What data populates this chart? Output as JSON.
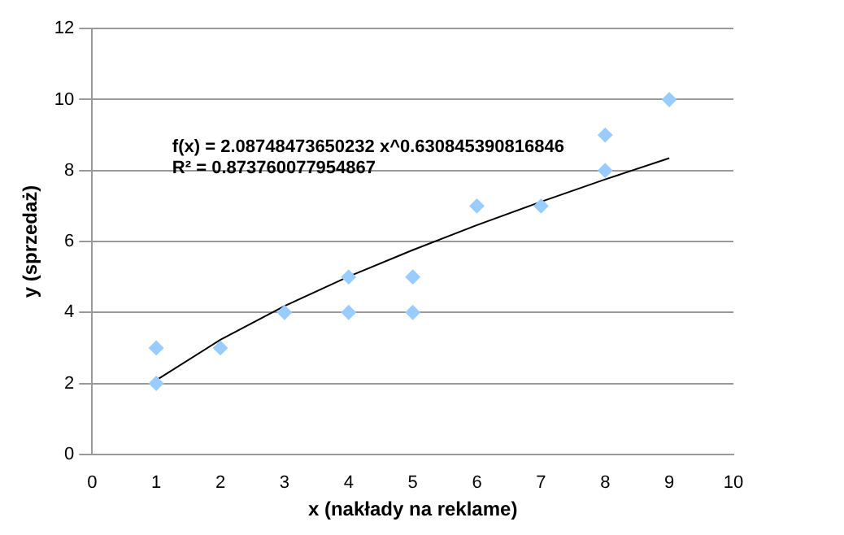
{
  "chart_data": {
    "type": "scatter",
    "xlabel": "x (nakłady na reklame)",
    "ylabel": "y (sprzedaż)",
    "xlim": [
      0,
      10
    ],
    "xticks": [
      0,
      1,
      2,
      3,
      4,
      5,
      6,
      7,
      8,
      9,
      10
    ],
    "ylim": [
      0,
      12
    ],
    "yticks": [
      0,
      2,
      4,
      6,
      8,
      10,
      12
    ],
    "grid": "y",
    "legend": false,
    "marker": "diamond",
    "series": [
      {
        "color": "#99ccff",
        "x": [
          1,
          1,
          2,
          3,
          4,
          4,
          5,
          5,
          6,
          7,
          8,
          8,
          9
        ],
        "values": [
          3,
          2,
          3,
          4,
          5,
          4,
          5,
          4,
          7,
          7,
          8,
          9,
          10
        ]
      },
      {
        "type": "line",
        "color": "#000000",
        "marker": "none",
        "x": [
          1,
          2,
          3,
          4,
          5,
          6,
          7,
          8,
          9
        ],
        "values": [
          2.09,
          3.23,
          4.18,
          5.01,
          5.76,
          6.46,
          7.12,
          7.75,
          8.35
        ]
      }
    ],
    "annotations": [
      "f(x) = 2.08748473650232 x^0.630845390816846",
      "R² = 0.873760077954867"
    ]
  }
}
